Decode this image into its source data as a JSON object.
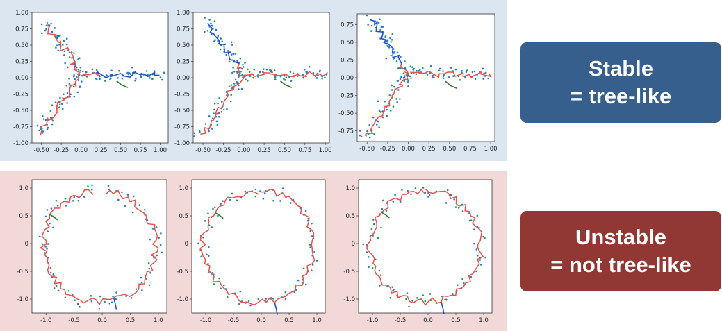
{
  "labels": {
    "stable_line1": "Stable",
    "stable_line2": "= tree-like",
    "unstable_line1": "Unstable",
    "unstable_line2": "= not tree-like"
  },
  "colors": {
    "stable_bg": "#dce6f1",
    "unstable_bg": "#f2d9d8",
    "stable_box": "#365f8e",
    "unstable_box": "#923834",
    "tree_red": "#e8524a",
    "branch_blue": "#1f4fd6",
    "branch_green": "#2b7a2b",
    "points": "#2a7fb8"
  },
  "chart_data": [
    {
      "type": "scatter",
      "shape": "tripod",
      "seed": 11,
      "xlim": [
        -0.62,
        1.1
      ],
      "ylim": [
        -1.0,
        1.0
      ],
      "xticks": [
        "-0.50",
        "-0.25",
        "0.00",
        "0.25",
        "0.50",
        "0.75",
        "1.00"
      ],
      "yticks": [
        "1.00",
        "0.75",
        "0.50",
        "0.25",
        "0.00",
        "-0.25",
        "-0.50",
        "-0.75",
        "-1.00"
      ],
      "blue_branch": "arm_right"
    },
    {
      "type": "scatter",
      "shape": "tripod",
      "seed": 23,
      "xlim": [
        -0.62,
        1.05
      ],
      "ylim": [
        -1.0,
        1.0
      ],
      "xticks": [
        "-0.50",
        "-0.25",
        "0.00",
        "0.25",
        "0.50",
        "0.75",
        "1.00"
      ],
      "yticks": [
        "1.00",
        "0.75",
        "0.50",
        "0.25",
        "0.00",
        "-0.25",
        "-0.50",
        "-0.75",
        "-1.00"
      ],
      "blue_branch": "arm_up"
    },
    {
      "type": "scatter",
      "shape": "tripod",
      "seed": 37,
      "xlim": [
        -0.62,
        1.05
      ],
      "ylim": [
        -0.9,
        0.9
      ],
      "xticks": [
        "-0.50",
        "-0.25",
        "0.00",
        "0.25",
        "0.50",
        "0.75",
        "1.00"
      ],
      "yticks": [
        "0.75",
        "0.50",
        "0.25",
        "0.00",
        "-0.25",
        "-0.50",
        "-0.75"
      ],
      "blue_branch": "arm_up"
    },
    {
      "type": "scatter",
      "shape": "ring",
      "seed": 41,
      "xlim": [
        -1.25,
        1.15
      ],
      "ylim": [
        -1.25,
        1.15
      ],
      "xticks": [
        "-1.0",
        "-0.5",
        "0.0",
        "0.5",
        "1.0"
      ],
      "yticks": [
        "1.0",
        "0.5",
        "0",
        "-0.5",
        "-1.0"
      ],
      "ring_gap": true
    },
    {
      "type": "scatter",
      "shape": "ring",
      "seed": 53,
      "xlim": [
        -1.25,
        1.15
      ],
      "ylim": [
        -1.25,
        1.15
      ],
      "xticks": [
        "-1.0",
        "-0.5",
        "0.0",
        "0.5",
        "1.0"
      ],
      "yticks": [
        "1.0",
        "0.5",
        "0",
        "-0.5",
        "-1.0"
      ],
      "ring_gap": false
    },
    {
      "type": "scatter",
      "shape": "ring",
      "seed": 67,
      "xlim": [
        -1.25,
        1.15
      ],
      "ylim": [
        -1.25,
        1.15
      ],
      "xticks": [
        "-1.0",
        "-0.5",
        "0.0",
        "0.5",
        "1.0"
      ],
      "yticks": [
        "1.0",
        "0.5",
        "0",
        "-0.5",
        "-1.0"
      ],
      "ring_gap": false
    }
  ]
}
